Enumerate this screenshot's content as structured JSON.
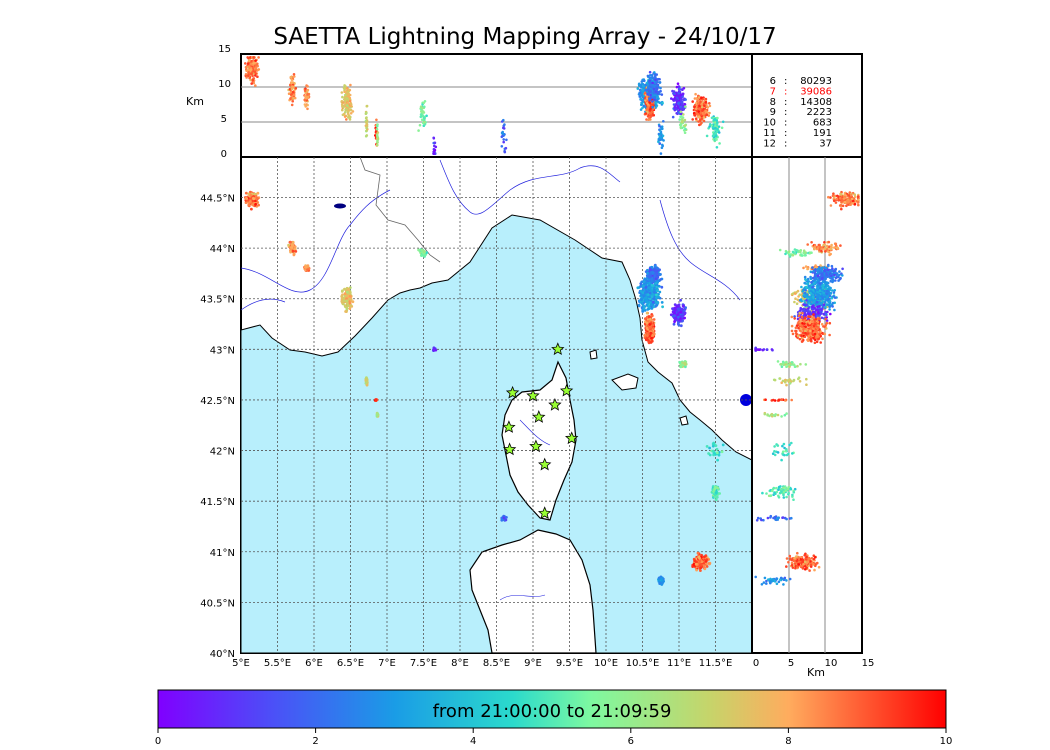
{
  "title": "SAETTA Lightning Mapping Array - 24/10/17",
  "map": {
    "lon_range": [
      5,
      12
    ],
    "lat_range": [
      40,
      44.9
    ],
    "lon_ticks": [
      "5°E",
      "5.5°E",
      "6°E",
      "6.5°E",
      "7°E",
      "7.5°E",
      "8°E",
      "8.5°E",
      "9°E",
      "9.5°E",
      "10°E",
      "10.5°E",
      "11°E",
      "11.5°E"
    ],
    "lat_ticks": [
      "40°N",
      "40.5°N",
      "41°N",
      "41.5°N",
      "42°N",
      "42.5°N",
      "43°N",
      "43.5°N",
      "44°N",
      "44.5°N"
    ],
    "sea_color": "#b8effc",
    "stations": [
      {
        "lon": 9.34,
        "lat": 43.0
      },
      {
        "lon": 8.72,
        "lat": 42.57
      },
      {
        "lon": 9.0,
        "lat": 42.54
      },
      {
        "lon": 9.46,
        "lat": 42.59
      },
      {
        "lon": 9.3,
        "lat": 42.45
      },
      {
        "lon": 9.08,
        "lat": 42.33
      },
      {
        "lon": 8.67,
        "lat": 42.23
      },
      {
        "lon": 9.53,
        "lat": 42.12
      },
      {
        "lon": 8.68,
        "lat": 42.01
      },
      {
        "lon": 9.04,
        "lat": 42.04
      },
      {
        "lon": 9.16,
        "lat": 41.86
      },
      {
        "lon": 9.16,
        "lat": 41.38
      }
    ]
  },
  "altitude_panel": {
    "label": "Km",
    "ticks": [
      "0",
      "5",
      "10",
      "15"
    ]
  },
  "stats": [
    {
      "key": "6",
      "value": "80293",
      "color": "#000000"
    },
    {
      "key": "7",
      "value": "39086",
      "color": "#ff0000"
    },
    {
      "key": "8",
      "value": "14308",
      "color": "#000000"
    },
    {
      "key": "9",
      "value": "2223",
      "color": "#000000"
    },
    {
      "key": "10",
      "value": "683",
      "color": "#000000"
    },
    {
      "key": "11",
      "value": "191",
      "color": "#000000"
    },
    {
      "key": "12",
      "value": "37",
      "color": "#000000"
    }
  ],
  "colorbar": {
    "label": "from 21:00:00 to 21:09:59",
    "ticks": [
      "0",
      "2",
      "4",
      "6",
      "8",
      "10"
    ],
    "range": [
      0,
      10
    ]
  },
  "clusters": [
    {
      "lon": 5.5,
      "lat": 43.5,
      "z": 5,
      "n": 0,
      "t": 0
    },
    {
      "lon": 5.15,
      "lat": 44.48,
      "z": 13,
      "n": 160,
      "t": 8.6,
      "spread": [
        0.12,
        0.1
      ]
    },
    {
      "lon": 5.7,
      "lat": 44.0,
      "z": 10,
      "n": 70,
      "t": 8.2,
      "spread": [
        0.06,
        0.08
      ]
    },
    {
      "lon": 5.9,
      "lat": 43.8,
      "z": 9,
      "n": 40,
      "t": 8.5,
      "spread": [
        0.05,
        0.04
      ]
    },
    {
      "lon": 6.45,
      "lat": 43.5,
      "z": 8,
      "n": 130,
      "t": 7.6,
      "spread": [
        0.1,
        0.15
      ]
    },
    {
      "lon": 7.5,
      "lat": 43.95,
      "z": 6,
      "n": 40,
      "t": 5.5,
      "spread": [
        0.08,
        0.05
      ]
    },
    {
      "lon": 7.65,
      "lat": 43.0,
      "z": 1,
      "n": 25,
      "t": 1.0,
      "spread": [
        0.03,
        0.02
      ]
    },
    {
      "lon": 6.72,
      "lat": 42.68,
      "z": 5,
      "n": 25,
      "t": 7.0,
      "spread": [
        0.02,
        0.05
      ]
    },
    {
      "lon": 6.85,
      "lat": 42.5,
      "z": 4,
      "n": 15,
      "t": 9.3,
      "spread": [
        0.02,
        0.01
      ]
    },
    {
      "lon": 6.87,
      "lat": 42.35,
      "z": 3,
      "n": 15,
      "t": 6.2,
      "spread": [
        0.02,
        0.03
      ]
    },
    {
      "lon": 8.6,
      "lat": 41.33,
      "z": 3,
      "n": 25,
      "t": 2.0,
      "spread": [
        0.06,
        0.03
      ]
    },
    {
      "lon": 10.6,
      "lat": 43.55,
      "z": 9,
      "n": 400,
      "t": 3.0,
      "spread": [
        0.2,
        0.22
      ]
    },
    {
      "lon": 11.0,
      "lat": 43.35,
      "z": 8,
      "n": 150,
      "t": 1.0,
      "spread": [
        0.12,
        0.15
      ]
    },
    {
      "lon": 10.6,
      "lat": 43.2,
      "z": 8,
      "n": 300,
      "t": 8.8,
      "spread": [
        0.08,
        0.2
      ]
    },
    {
      "lon": 10.65,
      "lat": 43.75,
      "z": 10,
      "n": 200,
      "t": 2.2,
      "spread": [
        0.12,
        0.1
      ]
    },
    {
      "lon": 11.05,
      "lat": 42.85,
      "z": 5,
      "n": 30,
      "t": 6.0,
      "spread": [
        0.08,
        0.05
      ]
    },
    {
      "lon": 11.5,
      "lat": 41.6,
      "z": 4,
      "n": 60,
      "t": 5.0,
      "spread": [
        0.07,
        0.1
      ]
    },
    {
      "lon": 11.3,
      "lat": 40.9,
      "z": 7,
      "n": 180,
      "t": 8.8,
      "spread": [
        0.15,
        0.1
      ]
    },
    {
      "lon": 10.75,
      "lat": 40.72,
      "z": 3,
      "n": 40,
      "t": 2.8,
      "spread": [
        0.05,
        0.05
      ]
    },
    {
      "lon": 11.5,
      "lat": 42.0,
      "z": 4,
      "n": 25,
      "t": 4.5,
      "spread": [
        0.15,
        0.1
      ]
    }
  ]
}
